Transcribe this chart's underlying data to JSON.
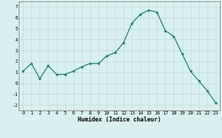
{
  "x": [
    0,
    1,
    2,
    3,
    4,
    5,
    6,
    7,
    8,
    9,
    10,
    11,
    12,
    13,
    14,
    15,
    16,
    17,
    18,
    19,
    20,
    21,
    22,
    23
  ],
  "y": [
    1.1,
    1.8,
    0.4,
    1.6,
    0.8,
    0.8,
    1.1,
    1.5,
    1.8,
    1.8,
    2.5,
    2.8,
    3.7,
    5.5,
    6.3,
    6.7,
    6.5,
    4.8,
    4.3,
    2.7,
    1.1,
    0.2,
    -0.7,
    -1.8
  ],
  "xlabel": "Humidex (Indice chaleur)",
  "xlim": [
    -0.5,
    23.5
  ],
  "ylim": [
    -2.5,
    7.5
  ],
  "yticks": [
    -2,
    -1,
    0,
    1,
    2,
    3,
    4,
    5,
    6,
    7
  ],
  "xticks": [
    0,
    1,
    2,
    3,
    4,
    5,
    6,
    7,
    8,
    9,
    10,
    11,
    12,
    13,
    14,
    15,
    16,
    17,
    18,
    19,
    20,
    21,
    22,
    23
  ],
  "line_color": "#2e7d72",
  "marker": "D",
  "marker_size": 1.8,
  "bg_color": "#d8f0f0",
  "grid_color": "#c0d8d8",
  "line_width": 1.0,
  "tick_fontsize": 5.0,
  "xlabel_fontsize": 6.0
}
